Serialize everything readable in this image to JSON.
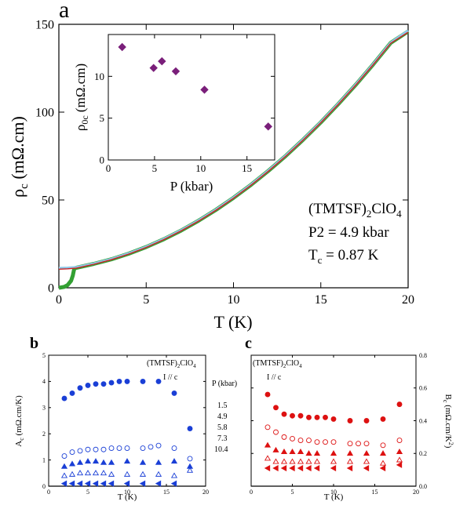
{
  "panel_labels": {
    "a": "a",
    "b": "b",
    "c": "c"
  },
  "chart_data": [
    {
      "id": "a",
      "type": "line",
      "xlabel": "T (K)",
      "ylabel_main": "ρ",
      "ylabel_sub": "c",
      "ylabel_rest": " (mΩ.cm)",
      "xlim": [
        0,
        20
      ],
      "ylim": [
        0,
        150
      ],
      "xticks": [
        0,
        5,
        10,
        15,
        20
      ],
      "yticks": [
        0,
        50,
        100,
        150
      ],
      "annotation": {
        "compound_a": "(TMTSF)",
        "compound_sub": "2",
        "compound_b": "ClO",
        "compound_sub2": "4",
        "pressure": "P2 = 4.9 kbar",
        "tc_main": "T",
        "tc_sub": "c",
        "tc_rest": " =  0.87 K"
      },
      "series": [
        {
          "color": "#33a033",
          "x": [
            0.0,
            0.3,
            0.5,
            0.7,
            0.8,
            0.87,
            0.95,
            1,
            2,
            3,
            4,
            5,
            6,
            7,
            8,
            9,
            10,
            11,
            12,
            13,
            14,
            15,
            16,
            17,
            18,
            19,
            20
          ],
          "y": [
            0,
            0.5,
            1.5,
            4,
            7,
            10.5,
            11.3,
            11.4,
            13.6,
            16.2,
            19.4,
            23.2,
            27.6,
            32.6,
            38.2,
            44.4,
            51.2,
            58.6,
            66.6,
            75.2,
            84.4,
            94.2,
            104.6,
            115.6,
            127.2,
            139.4,
            146
          ]
        },
        {
          "color": "#8fc9e8",
          "x": [
            0,
            0.5,
            1,
            2,
            3,
            4,
            5,
            6,
            7,
            8,
            9,
            10,
            11,
            12,
            13,
            14,
            15,
            16,
            17,
            18,
            19,
            20
          ],
          "y": [
            11.2,
            11.4,
            11.7,
            13.8,
            16.4,
            19.6,
            23.4,
            27.8,
            32.8,
            38.4,
            44.6,
            51.4,
            58.8,
            66.8,
            75.4,
            84.6,
            94.4,
            104.8,
            115.8,
            127.4,
            139.6,
            146.5
          ]
        },
        {
          "color": "#cc2222",
          "x": [
            0,
            0.5,
            1,
            2,
            3,
            4,
            5,
            6,
            7,
            8,
            9,
            10,
            11,
            12,
            13,
            14,
            15,
            16,
            17,
            18,
            19,
            20
          ],
          "y": [
            10.6,
            10.8,
            11.2,
            13.4,
            16.0,
            19.2,
            23.0,
            27.4,
            32.4,
            38.0,
            44.2,
            51.0,
            58.4,
            66.4,
            75.0,
            84.2,
            94.0,
            104.4,
            115.4,
            127.0,
            139.2,
            145.5
          ]
        }
      ]
    },
    {
      "id": "a-inset",
      "type": "scatter",
      "xlabel": "P (kbar)",
      "ylabel_main": "ρ",
      "ylabel_sub": "0c",
      "ylabel_rest": " (mΩ.cm)",
      "xlim": [
        0,
        18
      ],
      "ylim": [
        0,
        15
      ],
      "xticks": [
        0,
        5,
        10,
        15
      ],
      "yticks": [
        0,
        5,
        10
      ],
      "marker_color": "#7a1f7a",
      "x": [
        1.5,
        4.9,
        5.8,
        7.3,
        10.4,
        17.3
      ],
      "y": [
        13.5,
        11.0,
        11.8,
        10.6,
        8.4,
        4.0
      ]
    },
    {
      "id": "b",
      "type": "scatter",
      "xlabel": "T (K)",
      "ylabel_main": "A",
      "ylabel_sub": "c",
      "ylabel_rest": " (mΩ.cm/K)",
      "xlim": [
        0,
        20
      ],
      "ylim": [
        0,
        5
      ],
      "xticks": [
        0,
        5,
        10,
        15,
        20
      ],
      "yticks": [
        0,
        1,
        2,
        3,
        4,
        5
      ],
      "annotation": {
        "compound_a": "(TMTSF)",
        "compound_sub": "2",
        "compound_b": "ClO",
        "compound_sub2": "4",
        "current": "I // c"
      },
      "legend_title": "P (kbar)",
      "legend_entries": [
        "1.5",
        "4.9",
        "5.8",
        "7.3",
        "10.4"
      ],
      "color": "#1a3fd6",
      "series": [
        {
          "marker": "filled-circle",
          "x": [
            2,
            3,
            4,
            5,
            6,
            7,
            8,
            9,
            10,
            12,
            14,
            16,
            18
          ],
          "y": [
            3.35,
            3.55,
            3.75,
            3.85,
            3.9,
            3.9,
            3.95,
            4.0,
            4.0,
            4.0,
            4.0,
            3.55,
            2.2
          ]
        },
        {
          "marker": "open-circle",
          "x": [
            2,
            3,
            4,
            5,
            6,
            7,
            8,
            9,
            10,
            12,
            13,
            14,
            16,
            18
          ],
          "y": [
            1.15,
            1.3,
            1.35,
            1.4,
            1.4,
            1.4,
            1.45,
            1.45,
            1.45,
            1.45,
            1.5,
            1.55,
            1.45,
            1.05
          ]
        },
        {
          "marker": "filled-triangle-up",
          "x": [
            2,
            3,
            4,
            5,
            6,
            7,
            8,
            10,
            12,
            14,
            16,
            18
          ],
          "y": [
            0.75,
            0.85,
            0.9,
            0.95,
            0.95,
            0.9,
            0.9,
            0.95,
            0.9,
            0.9,
            0.95,
            0.75
          ]
        },
        {
          "marker": "open-triangle-up",
          "x": [
            2,
            3,
            4,
            5,
            6,
            7,
            8,
            10,
            12,
            14,
            16,
            18
          ],
          "y": [
            0.4,
            0.45,
            0.5,
            0.5,
            0.5,
            0.5,
            0.45,
            0.45,
            0.45,
            0.45,
            0.4,
            0.6
          ]
        },
        {
          "marker": "filled-triangle-left",
          "x": [
            2,
            3,
            4,
            5,
            6,
            7,
            8,
            10,
            12,
            14,
            16
          ],
          "y": [
            0.1,
            0.1,
            0.1,
            0.1,
            0.1,
            0.1,
            0.1,
            0.1,
            0.1,
            0.1,
            0.1
          ]
        }
      ]
    },
    {
      "id": "c",
      "type": "scatter",
      "xlabel": "T (K)",
      "ylabel_main": "B",
      "ylabel_sub": "c",
      "ylabel_rest": " (mΩ.cm/K",
      "ylabel_sup": "2",
      "ylabel_end": ")",
      "xlim": [
        0,
        20
      ],
      "ylim": [
        0,
        0.8
      ],
      "xticks": [
        0,
        5,
        10,
        15,
        20
      ],
      "yticks": [
        0.0,
        0.2,
        0.4,
        0.6,
        0.8
      ],
      "ytick_labels": [
        "0.0",
        "0.2",
        "0.4",
        "0.6",
        "0.8"
      ],
      "annotation": {
        "compound_a": "(TMTSF)",
        "compound_sub": "2",
        "compound_b": "ClO",
        "compound_sub2": "4",
        "current": "I // c"
      },
      "color": "#dd1111",
      "series": [
        {
          "marker": "filled-circle",
          "x": [
            2,
            3,
            4,
            5,
            6,
            7,
            8,
            9,
            10,
            12,
            14,
            16,
            18
          ],
          "y": [
            0.56,
            0.48,
            0.44,
            0.43,
            0.43,
            0.42,
            0.42,
            0.42,
            0.41,
            0.4,
            0.4,
            0.41,
            0.5
          ]
        },
        {
          "marker": "open-circle",
          "x": [
            2,
            3,
            4,
            5,
            6,
            7,
            8,
            9,
            10,
            12,
            13,
            14,
            16,
            18
          ],
          "y": [
            0.36,
            0.33,
            0.3,
            0.29,
            0.28,
            0.28,
            0.27,
            0.27,
            0.27,
            0.26,
            0.26,
            0.26,
            0.25,
            0.28
          ]
        },
        {
          "marker": "filled-triangle-up",
          "x": [
            2,
            3,
            4,
            5,
            6,
            7,
            8,
            10,
            12,
            14,
            16,
            18
          ],
          "y": [
            0.25,
            0.22,
            0.21,
            0.21,
            0.21,
            0.2,
            0.2,
            0.2,
            0.2,
            0.2,
            0.2,
            0.21
          ]
        },
        {
          "marker": "open-triangle-up",
          "x": [
            2,
            3,
            4,
            5,
            6,
            7,
            8,
            10,
            12,
            14,
            16,
            18
          ],
          "y": [
            0.17,
            0.15,
            0.15,
            0.15,
            0.15,
            0.15,
            0.15,
            0.15,
            0.15,
            0.15,
            0.14,
            0.16
          ]
        },
        {
          "marker": "filled-triangle-left",
          "x": [
            2,
            3,
            4,
            5,
            6,
            7,
            8,
            10,
            12,
            14,
            16,
            18
          ],
          "y": [
            0.11,
            0.11,
            0.11,
            0.11,
            0.11,
            0.11,
            0.11,
            0.11,
            0.11,
            0.11,
            0.11,
            0.13
          ]
        }
      ]
    }
  ]
}
